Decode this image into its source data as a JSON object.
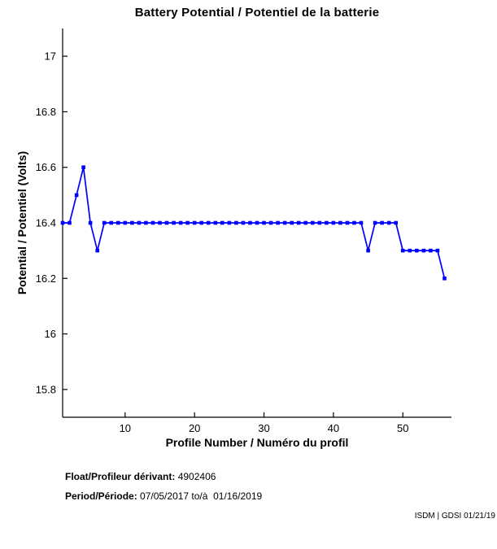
{
  "chart_data": {
    "type": "line",
    "title": "Battery Potential / Potentiel de la batterie",
    "xlabel": "Profile Number / Numéro du profil",
    "ylabel": "Potential / Potentiel (Volts)",
    "x": [
      1,
      2,
      3,
      4,
      5,
      6,
      7,
      8,
      9,
      10,
      11,
      12,
      13,
      14,
      15,
      16,
      17,
      18,
      19,
      20,
      21,
      22,
      23,
      24,
      25,
      26,
      27,
      28,
      29,
      30,
      31,
      32,
      33,
      34,
      35,
      36,
      37,
      38,
      39,
      40,
      41,
      42,
      43,
      44,
      45,
      46,
      47,
      48,
      49,
      50,
      51,
      52,
      53,
      54,
      55,
      56
    ],
    "values": [
      16.4,
      16.4,
      16.5,
      16.6,
      16.4,
      16.3,
      16.4,
      16.4,
      16.4,
      16.4,
      16.4,
      16.4,
      16.4,
      16.4,
      16.4,
      16.4,
      16.4,
      16.4,
      16.4,
      16.4,
      16.4,
      16.4,
      16.4,
      16.4,
      16.4,
      16.4,
      16.4,
      16.4,
      16.4,
      16.4,
      16.4,
      16.4,
      16.4,
      16.4,
      16.4,
      16.4,
      16.4,
      16.4,
      16.4,
      16.4,
      16.4,
      16.4,
      16.4,
      16.4,
      16.3,
      16.4,
      16.4,
      16.4,
      16.4,
      16.3,
      16.3,
      16.3,
      16.3,
      16.3,
      16.3,
      16.2
    ],
    "xlim": [
      1,
      57
    ],
    "ylim": [
      15.7,
      17.1
    ],
    "xticks": [
      10,
      20,
      30,
      40,
      50
    ],
    "yticks": [
      15.8,
      16,
      16.2,
      16.4,
      16.6,
      16.8,
      17
    ],
    "grid": false,
    "box": false,
    "legend": null,
    "line_color": "#0000ff",
    "marker": "square"
  },
  "footer": {
    "float_label": "Float/Profileur dérivant:",
    "float_value": "4902406",
    "period_label": "Period/Période:",
    "period_value": "07/05/2017 to/à  01/16/2019"
  },
  "watermark": "ISDM | GDSI 01/21/19"
}
